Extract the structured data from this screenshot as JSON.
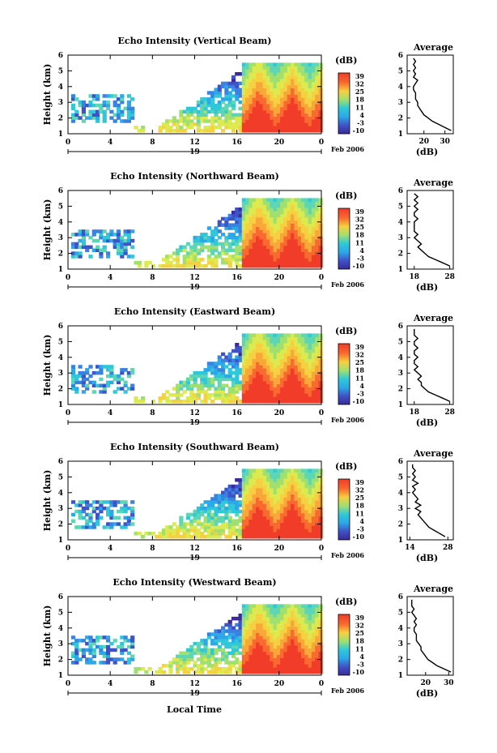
{
  "figure": {
    "xlabel": "Local Time",
    "date_label": "Feb 2006",
    "day_label": "19",
    "colorbar_unit": "(dB)",
    "colorbar_ticks": [
      "39",
      "32",
      "25",
      "18",
      "11",
      "4",
      "-3",
      "-10"
    ],
    "heatmap_colors": [
      "#3b2a98",
      "#3f53c8",
      "#3a82e0",
      "#2ca8e8",
      "#30c8d8",
      "#5cd6b4",
      "#a0e070",
      "#dcea50",
      "#f6d040",
      "#f8a838",
      "#f86a30",
      "#f03c28"
    ]
  },
  "chart_data": [
    {
      "type": "heatmap",
      "title": "Echo Intensity (Vertical Beam)",
      "ylabel": "Height (km)",
      "xlabel": "Local Time",
      "x_ticks": [
        "0",
        "4",
        "8",
        "12",
        "16",
        "20",
        "0"
      ],
      "y_ticks": [
        "1",
        "2",
        "3",
        "4",
        "5",
        "6"
      ],
      "xlim": [
        0,
        24
      ],
      "ylim": [
        1,
        6
      ],
      "colorbar": {
        "label": "(dB)",
        "range": [
          -10,
          39
        ]
      },
      "average_profile": {
        "title": "Average",
        "xlabel": "(dB)",
        "x_ticks": [
          "20",
          "30"
        ],
        "xlim": [
          12,
          34
        ],
        "y_ticks": [
          "1",
          "2",
          "3",
          "4",
          "5",
          "6"
        ],
        "height": [
          1.2,
          1.4,
          1.6,
          1.8,
          2.0,
          2.2,
          2.4,
          2.6,
          2.8,
          3.0,
          3.2,
          3.4,
          3.6,
          3.8,
          4.0,
          4.2,
          4.4,
          4.6,
          4.8,
          5.0,
          5.2,
          5.4,
          5.6,
          5.8
        ],
        "db": [
          33,
          30,
          27,
          24,
          22,
          20,
          19,
          18,
          17,
          17,
          16,
          16,
          16,
          15,
          15,
          16,
          17,
          15,
          16,
          15,
          16,
          15,
          16,
          15
        ]
      }
    },
    {
      "type": "heatmap",
      "title": "Echo Intensity (Northward Beam)",
      "ylabel": "Height (km)",
      "xlabel": "Local Time",
      "x_ticks": [
        "0",
        "4",
        "8",
        "12",
        "16",
        "20",
        "0"
      ],
      "y_ticks": [
        "1",
        "2",
        "3",
        "4",
        "5",
        "6"
      ],
      "xlim": [
        0,
        24
      ],
      "ylim": [
        1,
        6
      ],
      "colorbar": {
        "label": "(dB)",
        "range": [
          -10,
          39
        ]
      },
      "average_profile": {
        "title": "Average",
        "xlabel": "(dB)",
        "x_ticks": [
          "18",
          "28"
        ],
        "xlim": [
          16,
          29
        ],
        "y_ticks": [
          "1",
          "2",
          "3",
          "4",
          "5",
          "6"
        ],
        "height": [
          1.2,
          1.4,
          1.6,
          1.8,
          2.0,
          2.2,
          2.4,
          2.6,
          2.8,
          3.0,
          3.2,
          3.4,
          3.6,
          3.8,
          4.0,
          4.2,
          4.4,
          4.6,
          4.8,
          5.0,
          5.2,
          5.4,
          5.6,
          5.8
        ],
        "db": [
          28,
          26,
          24,
          22,
          21,
          20,
          19,
          20,
          19,
          18,
          19,
          18,
          18,
          18,
          18,
          19,
          18,
          18,
          19,
          18,
          19,
          18,
          19,
          18
        ]
      }
    },
    {
      "type": "heatmap",
      "title": "Echo Intensity (Eastward Beam)",
      "ylabel": "Height (km)",
      "xlabel": "Local Time",
      "x_ticks": [
        "0",
        "4",
        "8",
        "12",
        "16",
        "20",
        "0"
      ],
      "y_ticks": [
        "1",
        "2",
        "3",
        "4",
        "5",
        "6"
      ],
      "xlim": [
        0,
        24
      ],
      "ylim": [
        1,
        6
      ],
      "colorbar": {
        "label": "(dB)",
        "range": [
          -10,
          39
        ]
      },
      "average_profile": {
        "title": "Average",
        "xlabel": "(dB)",
        "x_ticks": [
          "18",
          "28"
        ],
        "xlim": [
          16,
          29
        ],
        "y_ticks": [
          "1",
          "2",
          "3",
          "4",
          "5",
          "6"
        ],
        "height": [
          1.2,
          1.4,
          1.6,
          1.8,
          2.0,
          2.2,
          2.4,
          2.6,
          2.8,
          3.0,
          3.2,
          3.4,
          3.6,
          3.8,
          4.0,
          4.2,
          4.4,
          4.6,
          4.8,
          5.0,
          5.2,
          5.4,
          5.6,
          5.8
        ],
        "db": [
          28,
          26,
          24,
          22,
          21,
          20,
          20,
          19,
          20,
          19,
          18,
          19,
          18,
          18,
          19,
          18,
          18,
          19,
          18,
          18,
          19,
          18,
          18,
          18
        ]
      }
    },
    {
      "type": "heatmap",
      "title": "Echo Intensity (Southward Beam)",
      "ylabel": "Height (km)",
      "xlabel": "Local Time",
      "x_ticks": [
        "0",
        "4",
        "8",
        "12",
        "16",
        "20",
        "0"
      ],
      "y_ticks": [
        "1",
        "2",
        "3",
        "4",
        "5",
        "6"
      ],
      "xlim": [
        0,
        24
      ],
      "ylim": [
        1,
        6
      ],
      "colorbar": {
        "label": "(dB)",
        "range": [
          -10,
          39
        ]
      },
      "average_profile": {
        "title": "Average",
        "xlabel": "(dB)",
        "x_ticks": [
          "14",
          "28"
        ],
        "xlim": [
          13,
          30
        ],
        "y_ticks": [
          "1",
          "2",
          "3",
          "4",
          "5",
          "6"
        ],
        "height": [
          1.2,
          1.4,
          1.6,
          1.8,
          2.0,
          2.2,
          2.4,
          2.6,
          2.8,
          3.0,
          3.2,
          3.4,
          3.6,
          3.8,
          4.0,
          4.2,
          4.4,
          4.6,
          4.8,
          5.0,
          5.2,
          5.4,
          5.6,
          5.8
        ],
        "db": [
          27,
          25,
          23,
          21,
          20,
          19,
          18,
          17,
          18,
          16,
          18,
          16,
          17,
          16,
          15,
          16,
          15,
          17,
          15,
          16,
          15,
          16,
          15,
          15
        ]
      }
    },
    {
      "type": "heatmap",
      "title": "Echo Intensity (Westward Beam)",
      "ylabel": "Height (km)",
      "xlabel": "Local Time",
      "x_ticks": [
        "0",
        "4",
        "8",
        "12",
        "16",
        "20",
        "0"
      ],
      "y_ticks": [
        "1",
        "2",
        "3",
        "4",
        "5",
        "6"
      ],
      "xlim": [
        0,
        24
      ],
      "ylim": [
        1,
        6
      ],
      "colorbar": {
        "label": "(dB)",
        "range": [
          -10,
          39
        ]
      },
      "average_profile": {
        "title": "Average",
        "xlabel": "(dB)",
        "x_ticks": [
          "20",
          "30"
        ],
        "xlim": [
          12,
          32
        ],
        "y_ticks": [
          "1",
          "2",
          "3",
          "4",
          "5",
          "6"
        ],
        "height": [
          1.2,
          1.4,
          1.6,
          1.8,
          2.0,
          2.2,
          2.4,
          2.6,
          2.8,
          3.0,
          3.2,
          3.4,
          3.6,
          3.8,
          4.0,
          4.2,
          4.4,
          4.6,
          4.8,
          5.0,
          5.2,
          5.4,
          5.6,
          5.8
        ],
        "db": [
          31,
          28,
          25,
          23,
          21,
          20,
          19,
          18,
          18,
          17,
          16,
          16,
          16,
          15,
          15,
          16,
          15,
          16,
          15,
          14,
          15,
          14,
          14,
          14
        ]
      }
    }
  ]
}
